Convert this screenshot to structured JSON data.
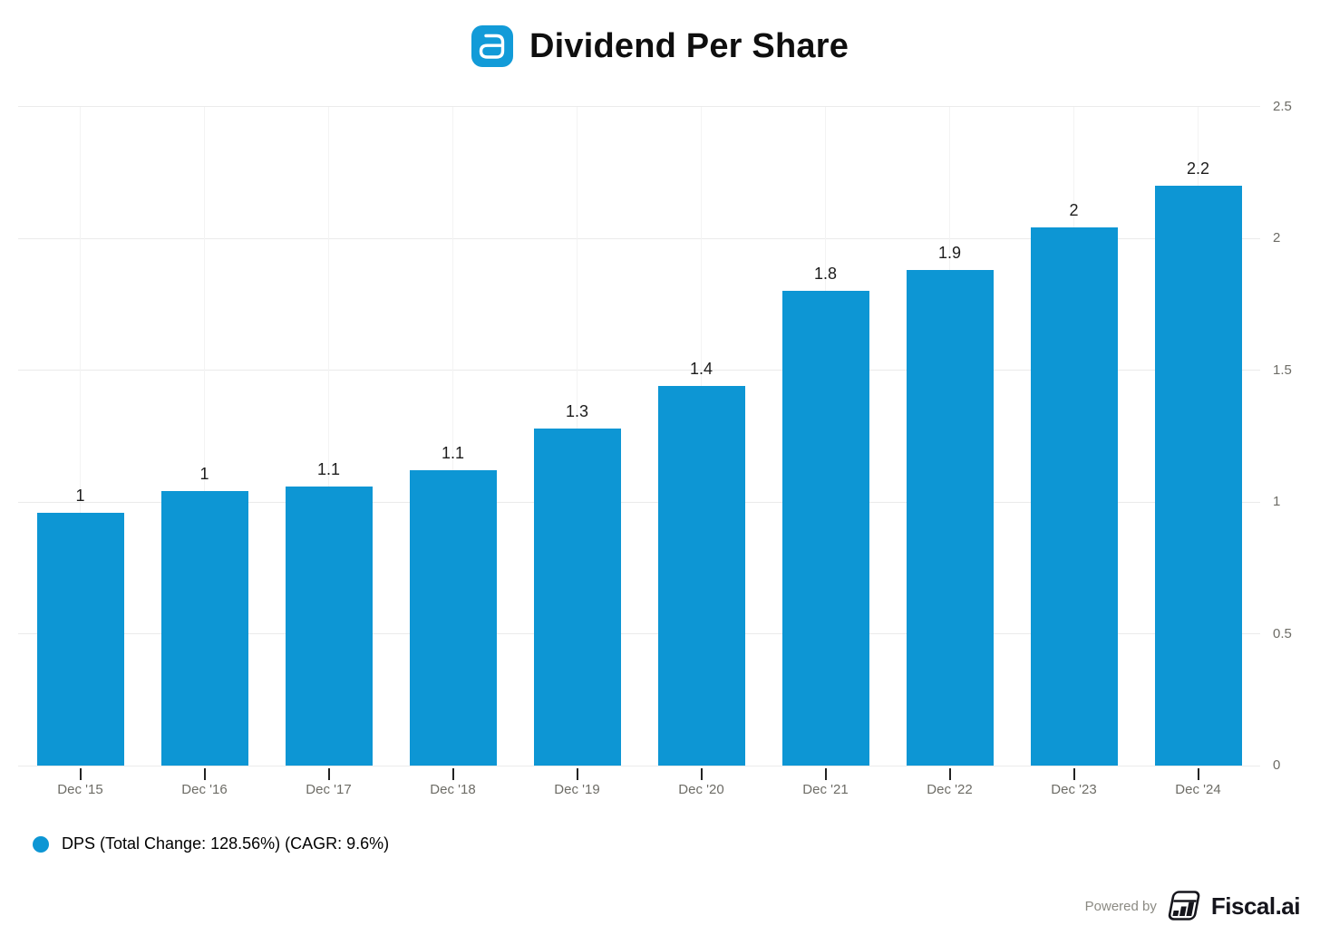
{
  "header": {
    "title": "Dividend Per Share",
    "logo_icon": "abbott-a-icon",
    "logo_color": "#129bd8"
  },
  "chart_data": {
    "type": "bar",
    "title": "Dividend Per Share",
    "categories": [
      "Dec '15",
      "Dec '16",
      "Dec '17",
      "Dec '18",
      "Dec '19",
      "Dec '20",
      "Dec '21",
      "Dec '22",
      "Dec '23",
      "Dec '24"
    ],
    "series": [
      {
        "name": "DPS (Total Change: 128.56%) (CAGR: 9.6%)",
        "values": [
          0.96,
          1.04,
          1.06,
          1.12,
          1.28,
          1.44,
          1.8,
          1.88,
          2.04,
          2.2
        ],
        "point_labels": [
          "1",
          "1",
          "1.1",
          "1.1",
          "1.3",
          "1.4",
          "1.8",
          "1.9",
          "2",
          "2.2"
        ],
        "color": "#0d96d4"
      }
    ],
    "xlabel": "",
    "ylabel": "",
    "ylim": [
      0,
      2.5
    ],
    "yticks": [
      0,
      0.5,
      1,
      1.5,
      2,
      2.5
    ],
    "ytick_labels": [
      "0",
      "0.5",
      "1",
      "1.5",
      "2",
      "2.5"
    ],
    "yaxis_side": "right",
    "grid": true,
    "legend_position": "bottom-left"
  },
  "legend": {
    "marker_color": "#0d96d4",
    "label": "DPS (Total Change: 128.56%) (CAGR: 9.6%)"
  },
  "footer": {
    "powered_by_label": "Powered by",
    "brand_name": "Fiscal.ai",
    "brand_icon": "fiscal-ai-logo-icon"
  }
}
